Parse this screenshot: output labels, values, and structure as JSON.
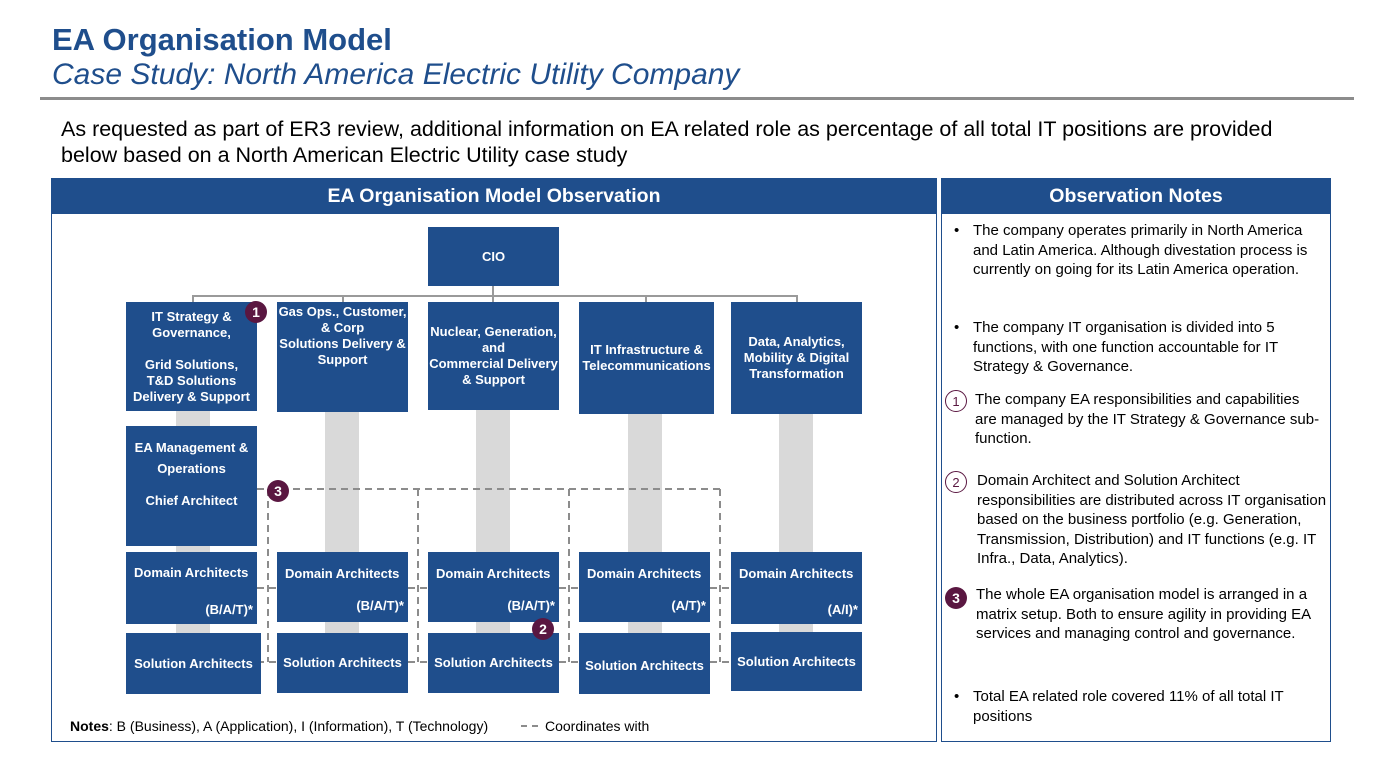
{
  "header": {
    "title": "EA Organisation Model",
    "subtitle": "Case Study: North America Electric Utility Company"
  },
  "intro": "As requested as part of ER3 review, additional information on EA related role as percentage of all total IT positions are provided below based on a North American Electric Utility case study",
  "left_panel": {
    "title": "EA Organisation Model Observation",
    "cio": "CIO",
    "functions": [
      {
        "lines": [
          "IT Strategy &",
          "Governance,",
          "",
          "Grid Solutions,",
          "T&D Solutions",
          "Delivery & Support"
        ]
      },
      {
        "lines": [
          "Gas Ops., Customer,",
          "& Corp",
          "Solutions Delivery &",
          "Support"
        ]
      },
      {
        "lines": [
          "Nuclear, Generation,",
          "and",
          "Commercial Delivery",
          "& Support"
        ]
      },
      {
        "lines": [
          "IT Infrastructure &",
          "Telecommunications"
        ]
      },
      {
        "lines": [
          "Data, Analytics,",
          "Mobility & Digital",
          "Transformation"
        ]
      }
    ],
    "ea_management": {
      "line1": "EA Management &",
      "line2": "Operations",
      "line3": "Chief Architect"
    },
    "domain_architects": [
      {
        "label": "Domain Architects",
        "scope": "(B/A/T)*"
      },
      {
        "label": "Domain Architects",
        "scope": "(B/A/T)*"
      },
      {
        "label": "Domain Architects",
        "scope": "(B/A/T)*"
      },
      {
        "label": "Domain Architects",
        "scope": "(A/T)*"
      },
      {
        "label": "Domain Architects",
        "scope": "(A/I)*"
      }
    ],
    "solution_architects": [
      "Solution Architects",
      "Solution Architects",
      "Solution Architects",
      "Solution Architects",
      "Solution Architects"
    ],
    "badges": [
      "1",
      "2",
      "3"
    ],
    "notes_label": "Notes",
    "notes_text": ": B (Business), A (Application), I (Information), T (Technology)",
    "legend_text": "Coordinates with"
  },
  "right_panel": {
    "title": "Observation Notes",
    "notes": [
      {
        "marker": "•",
        "text": "The company operates primarily in North America and Latin America. Although divestation process is currently on going for its Latin America operation."
      },
      {
        "marker": "•",
        "text": "The company IT organisation is divided into 5 functions, with one function accountable for IT Strategy & Governance."
      },
      {
        "marker": "1",
        "text": "The company EA responsibilities and capabilities are managed by the IT Strategy & Governance sub-function."
      },
      {
        "marker": "2",
        "text": "Domain Architect and Solution Architect responsibilities are distributed across IT organisation based on the business portfolio (e.g. Generation, Transmission, Distribution) and IT functions (e.g. IT Infra., Data, Analytics)."
      },
      {
        "marker": "3",
        "text": "The whole EA organisation model is arranged in a matrix setup. Both to ensure agility in providing EA services and managing control and governance."
      },
      {
        "marker": "•",
        "text": "Total EA related role covered 11% of all total IT positions"
      }
    ]
  },
  "colors": {
    "primary": "#1f4e8c",
    "badge": "#5a1741",
    "connector": "#9a9a9a",
    "column": "#d9d9d9"
  }
}
